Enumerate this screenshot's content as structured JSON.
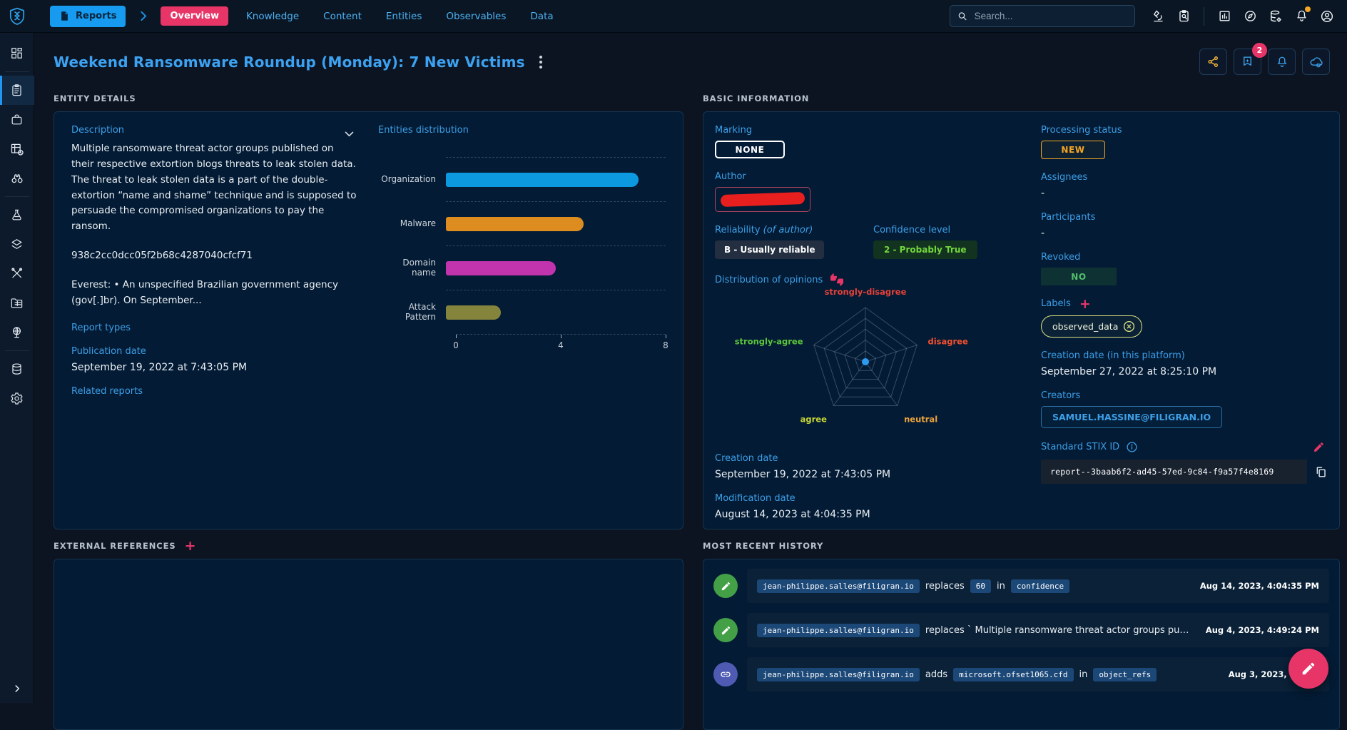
{
  "topbar": {
    "entity_type_button": "Reports",
    "tabs": {
      "active": "Overview",
      "items": [
        "Knowledge",
        "Content",
        "Entities",
        "Observables",
        "Data"
      ]
    },
    "search_placeholder": "Search...",
    "icon_names": [
      "microscope-icon",
      "clipboard-search-icon",
      "dashboards-icon",
      "compass-icon",
      "data-gear-icon",
      "notifications-bell-icon",
      "account-icon"
    ],
    "notification_dot_color": "#f5a623"
  },
  "page": {
    "title": "Weekend Ransomware Roundup (Monday): 7 New Victims",
    "actions": {
      "share": "share-icon",
      "suggestions_badge": "2",
      "bell": "bell-icon",
      "sync": "cloud-sync-icon"
    }
  },
  "entity_details": {
    "section_title": "ENTITY DETAILS",
    "description_label": "Description",
    "paragraphs": [
      "Multiple ransomware threat actor groups published on their respective extortion blogs threats to leak stolen data. The threat to leak stolen data is a part of the double-extortion “name and shame” technique and is supposed to persuade the compromised organizations to pay the ransom.",
      "938c2cc0dcc05f2b68c4287040cfcf71",
      "Everest: • An unspecified Brazilian government agency (gov[.]br). On September..."
    ],
    "report_types_label": "Report types",
    "publication_date_label": "Publication date",
    "publication_date_value": "September 19, 2022 at 7:43:05 PM",
    "related_reports_label": "Related reports",
    "distribution_title": "Entities distribution"
  },
  "basic_information": {
    "section_title": "BASIC INFORMATION",
    "marking_label": "Marking",
    "marking_value": "NONE",
    "author_label": "Author",
    "reliability_label": "Reliability",
    "reliability_hint": "(of author)",
    "reliability_value": "B - Usually reliable",
    "confidence_label": "Confidence level",
    "confidence_value": "2 - Probably True",
    "opinions_label": "Distribution of opinions",
    "creation_date_label": "Creation date",
    "creation_date_value": "September 19, 2022 at 7:43:05 PM",
    "modification_date_label": "Modification date",
    "modification_date_value": "August 14, 2023 at 4:04:35 PM",
    "processing_status_label": "Processing status",
    "processing_status_value": "NEW",
    "assignees_label": "Assignees",
    "assignees_value": "-",
    "participants_label": "Participants",
    "participants_value": "-",
    "revoked_label": "Revoked",
    "revoked_value": "NO",
    "labels_label": "Labels",
    "labels": [
      "observed_data"
    ],
    "platform_creation_label": "Creation date (in this platform)",
    "platform_creation_value": "September 27, 2022 at 8:25:10 PM",
    "creators_label": "Creators",
    "creators": [
      "SAMUEL.HASSINE@FILIGRAN.IO"
    ],
    "stix_label": "Standard STIX ID",
    "stix_value": "report--3baab6f2-ad45-57ed-9c84-f9a57f4e8169"
  },
  "external_references": {
    "section_title": "EXTERNAL REFERENCES"
  },
  "history": {
    "section_title": "MOST RECENT HISTORY",
    "items": [
      {
        "icon": "edit",
        "segments": [
          {
            "type": "chip",
            "text": "jean-philippe.salles@filigran.io"
          },
          {
            "type": "text",
            "text": "replaces"
          },
          {
            "type": "chip",
            "text": "60"
          },
          {
            "type": "text",
            "text": "in"
          },
          {
            "type": "chip",
            "text": "confidence"
          }
        ],
        "time": "Aug 14, 2023, 4:04:35 PM"
      },
      {
        "icon": "edit",
        "segments": [
          {
            "type": "chip",
            "text": "jean-philippe.salles@filigran.io"
          },
          {
            "type": "text",
            "text": "replaces ` Multiple ransomware threat actor groups pub..."
          }
        ],
        "time": "Aug 4, 2023, 4:49:24 PM"
      },
      {
        "icon": "link",
        "segments": [
          {
            "type": "chip",
            "text": "jean-philippe.salles@filigran.io"
          },
          {
            "type": "text",
            "text": "adds"
          },
          {
            "type": "chip",
            "text": "microsoft.ofset1065.cfd"
          },
          {
            "type": "text",
            "text": "in"
          },
          {
            "type": "chip",
            "text": "object_refs"
          }
        ],
        "time": "Aug 3, 2023, 9:38:2"
      }
    ]
  },
  "chart_data": [
    {
      "type": "bar",
      "orientation": "horizontal",
      "title": "Entities distribution",
      "categories": [
        "Organization",
        "Malware",
        "Domain name",
        "Attack Pattern"
      ],
      "values": [
        7,
        5,
        4,
        2
      ],
      "colors": [
        "#0d99e0",
        "#dd8c1f",
        "#c233ae",
        "#84843c"
      ],
      "xlim": [
        0,
        8
      ],
      "xticks": [
        0,
        4,
        8
      ],
      "grid": "dashed"
    },
    {
      "type": "radar",
      "title": "Distribution of opinions",
      "categories": [
        "strongly-disagree",
        "disagree",
        "neutral",
        "agree",
        "strongly-agree"
      ],
      "category_colors": [
        "#e8413a",
        "#f4502e",
        "#eda33c",
        "#c6d636",
        "#5bc53a"
      ],
      "values": [
        0,
        0,
        0,
        0,
        0
      ],
      "rings": 5,
      "point_color": "#2d9cf0"
    }
  ],
  "colors": {
    "accent_pink": "#e73568",
    "accent_blue": "#3d9fe8",
    "status_orange": "#f5a623",
    "status_green": "#53c06b",
    "card_bg": "#031b34"
  }
}
